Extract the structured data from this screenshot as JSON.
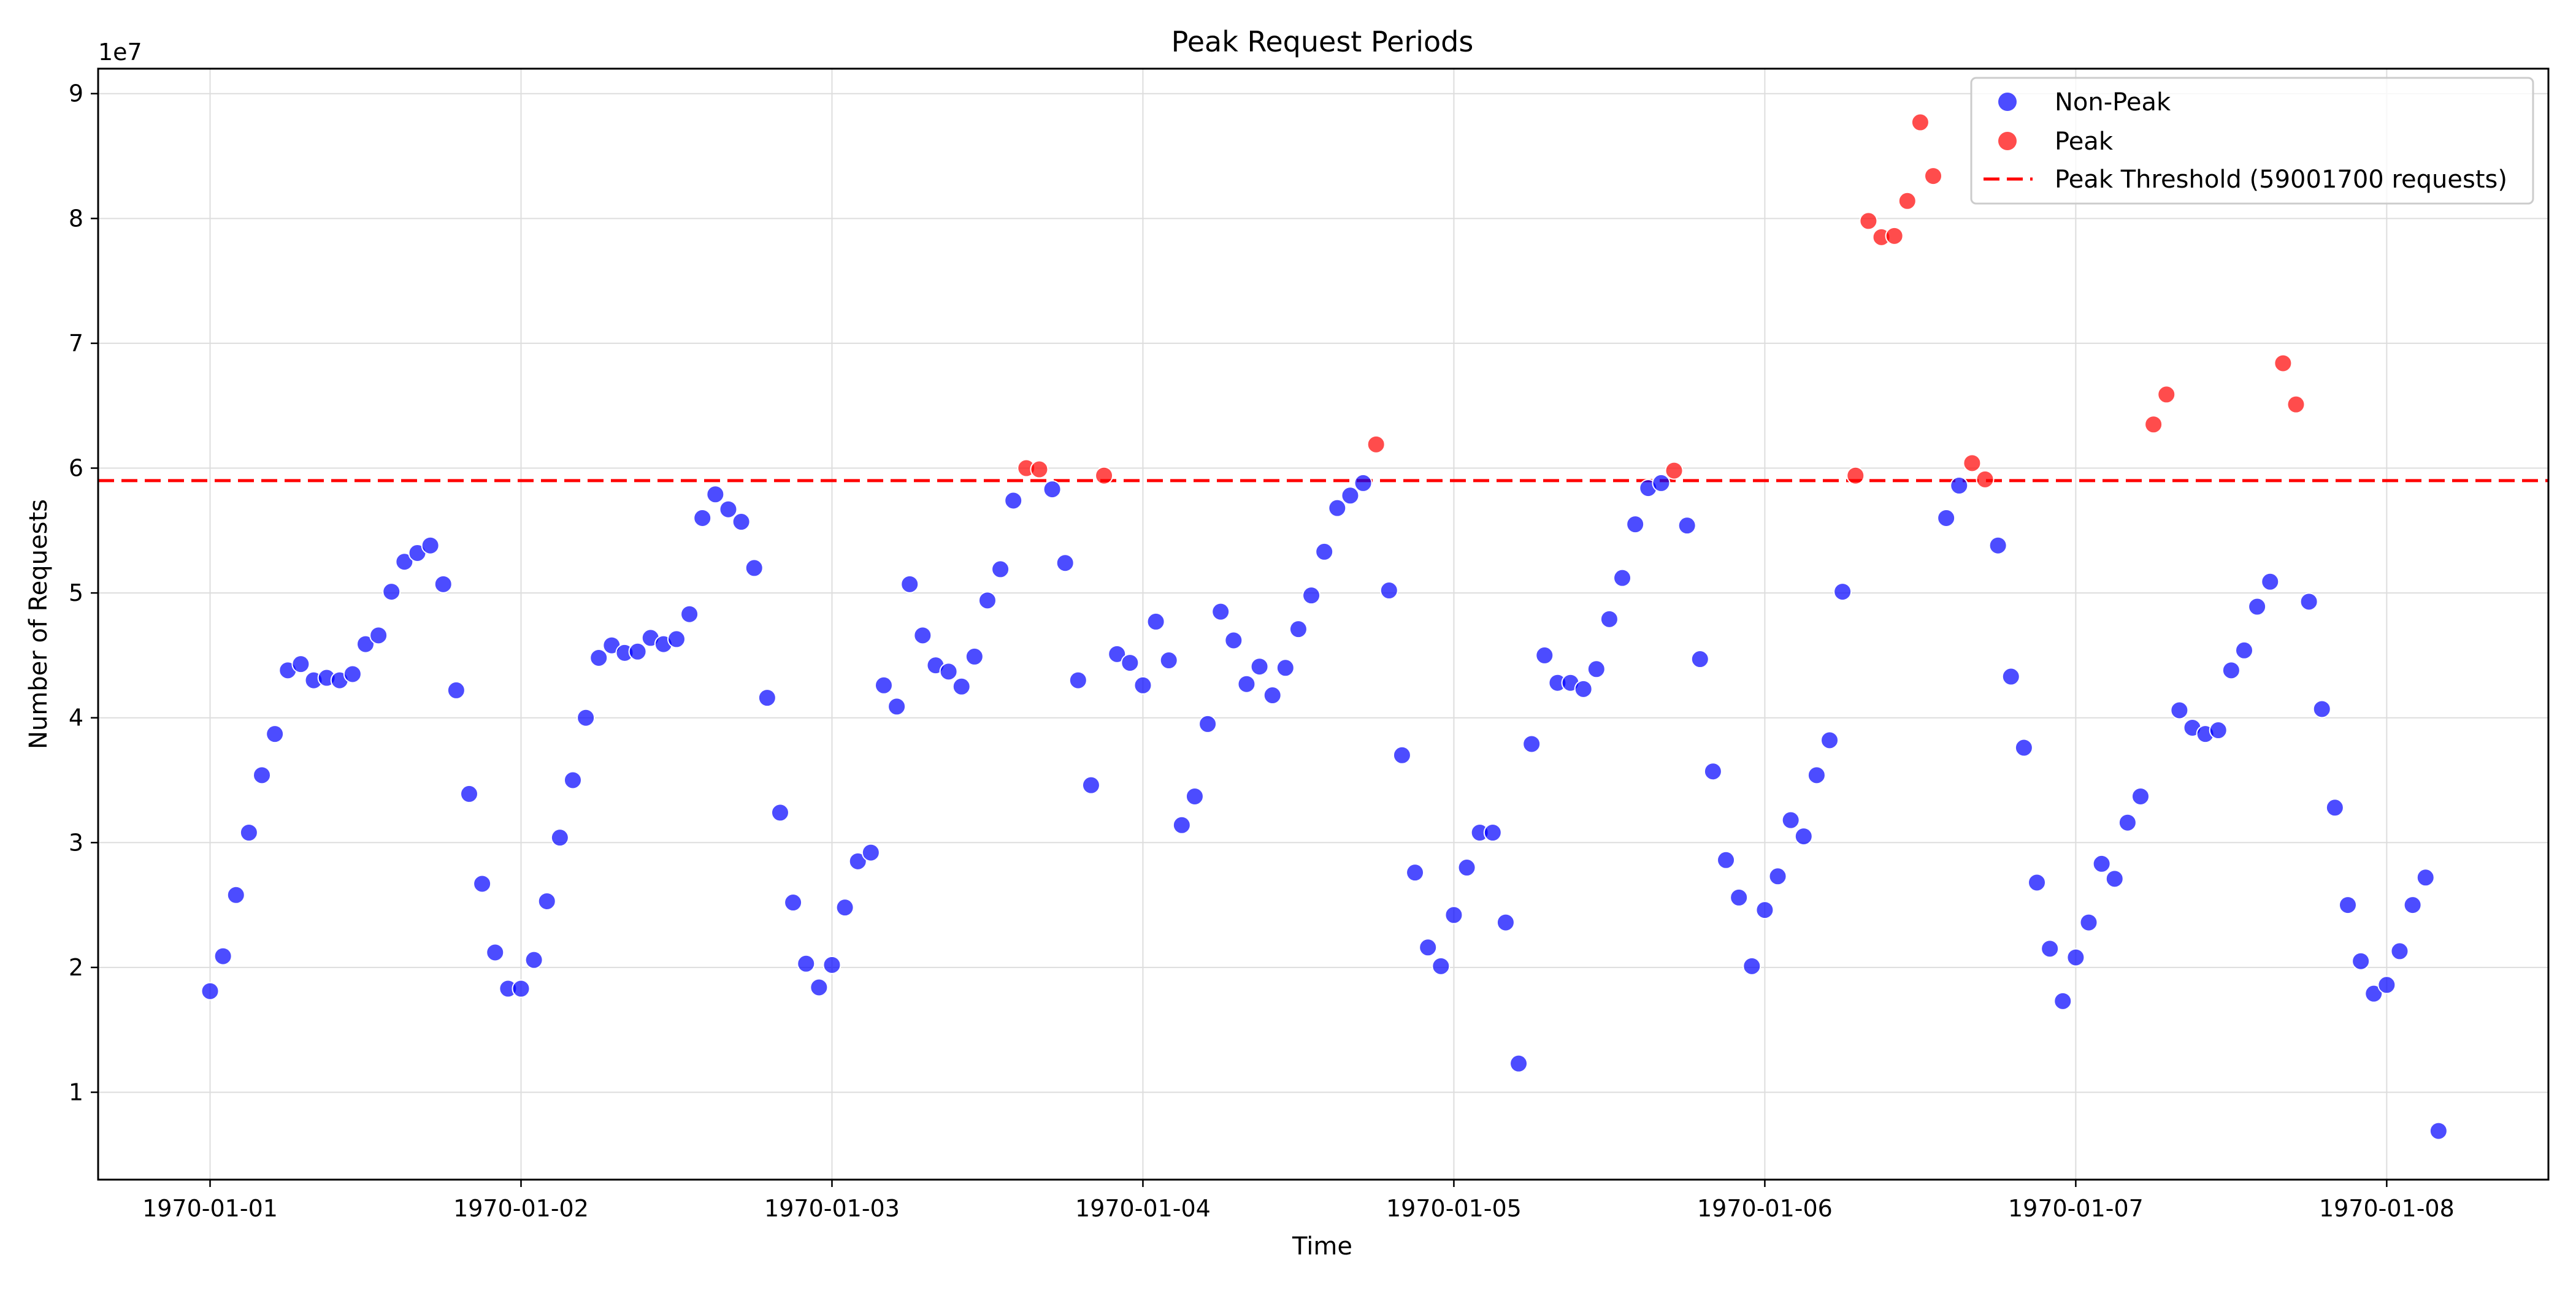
{
  "chart_data": {
    "type": "scatter",
    "title": "Peak Request Periods",
    "xlabel": "Time",
    "ylabel": "Number of Requests",
    "y_offset_label": "1e7",
    "x_ticks": [
      "1970-01-01",
      "1970-01-02",
      "1970-01-03",
      "1970-01-04",
      "1970-01-05",
      "1970-01-06",
      "1970-01-07",
      "1970-01-08"
    ],
    "y_ticks": [
      "1",
      "2",
      "3",
      "4",
      "5",
      "6",
      "7",
      "8",
      "9"
    ],
    "y_tick_values": [
      10000000,
      20000000,
      30000000,
      40000000,
      50000000,
      60000000,
      70000000,
      80000000,
      90000000
    ],
    "xlim_days": [
      -0.36,
      7.52
    ],
    "ylim": [
      3000000,
      92000000
    ],
    "x_unit": "days",
    "x_step_hours": 1,
    "grid": true,
    "legend_position": "top-right",
    "threshold": {
      "value": 59001700,
      "label": "Peak Threshold (59001700 requests)",
      "color": "#ff0000",
      "style": "dashed"
    },
    "series": [
      {
        "name": "Non-Peak",
        "color": "#0000ff"
      },
      {
        "name": "Peak",
        "color": "#ff0000"
      }
    ],
    "y_values": [
      18100000,
      20900000,
      25800000,
      30800000,
      35400000,
      38700000,
      43800000,
      44300000,
      43000000,
      43200000,
      43000000,
      43500000,
      45900000,
      46600000,
      50100000,
      52500000,
      53200000,
      53800000,
      50700000,
      42200000,
      33900000,
      26700000,
      21200000,
      18300000,
      18300000,
      20600000,
      25300000,
      30400000,
      35000000,
      40000000,
      44800000,
      45800000,
      45200000,
      45300000,
      46400000,
      45900000,
      46300000,
      48300000,
      56000000,
      57900000,
      56700000,
      55700000,
      52000000,
      41600000,
      32400000,
      25200000,
      20300000,
      18400000,
      20200000,
      24800000,
      28500000,
      29200000,
      42600000,
      40900000,
      50700000,
      46600000,
      44200000,
      43700000,
      42500000,
      44900000,
      49400000,
      51900000,
      57400000,
      60000000,
      59900000,
      58300000,
      52400000,
      43000000,
      34600000,
      59400000,
      45100000,
      44400000,
      42600000,
      47700000,
      44600000,
      31400000,
      33700000,
      39500000,
      48500000,
      46200000,
      42700000,
      44100000,
      41800000,
      44000000,
      47100000,
      49800000,
      53300000,
      56800000,
      57800000,
      58800000,
      61900000,
      50200000,
      37000000,
      27600000,
      21600000,
      20100000,
      24200000,
      28000000,
      30800000,
      30800000,
      23600000,
      12300000,
      37900000,
      45000000,
      42800000,
      42800000,
      42300000,
      43900000,
      47900000,
      51200000,
      55500000,
      58400000,
      58800000,
      59800000,
      55400000,
      44700000,
      35700000,
      28600000,
      25600000,
      20100000,
      24600000,
      27300000,
      31800000,
      30500000,
      35400000,
      38200000,
      50100000,
      59400000,
      79800000,
      78500000,
      78600000,
      81400000,
      87700000,
      83400000,
      56000000,
      58600000,
      60400000,
      59100000,
      53800000,
      43300000,
      37600000,
      26800000,
      21500000,
      17300000,
      20800000,
      23600000,
      28300000,
      27100000,
      31600000,
      33700000,
      63500000,
      65900000,
      40600000,
      39200000,
      38700000,
      39000000,
      43800000,
      45400000,
      48900000,
      50900000,
      68400000,
      65100000,
      49300000,
      40700000,
      32800000,
      25000000,
      20500000,
      17900000,
      18600000,
      21300000,
      25000000,
      27200000,
      6900000
    ]
  }
}
